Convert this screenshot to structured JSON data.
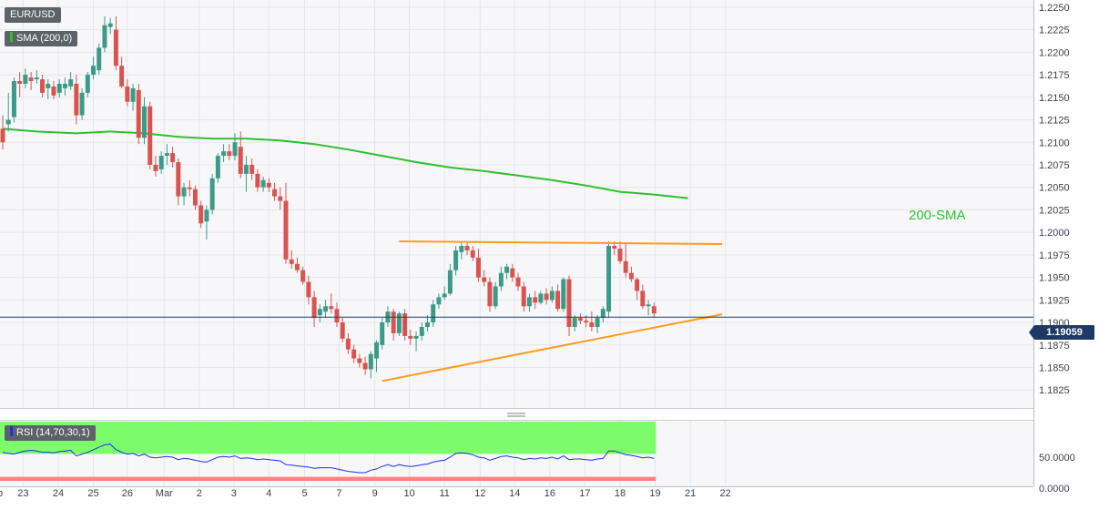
{
  "chart_data": {
    "type": "candlestick",
    "symbol": "EUR/USD",
    "indicators": {
      "sma": {
        "label": "SMA (200,0)",
        "color": "#2fbf2f",
        "callout": "200-SMA"
      },
      "rsi": {
        "label": "RSI (14,70,30,1)",
        "color": "#1f33d6",
        "overbought_color": "#7cfc6a",
        "oversold_color": "#ff8080"
      }
    },
    "last_price": "1.19059",
    "colors": {
      "up": "#3c9b86",
      "down": "#d9534f",
      "trendline": "#ff9a1e",
      "price_line": "#1d3a66"
    },
    "y_axis": {
      "ylim": [
        1.1805,
        1.2258
      ],
      "ticks": [
        "1.1825",
        "1.1850",
        "1.1875",
        "1.1900",
        "1.1925",
        "1.1950",
        "1.1975",
        "1.2000",
        "1.2025",
        "1.2050",
        "1.2075",
        "1.2100",
        "1.2125",
        "1.2150",
        "1.2175",
        "1.2200",
        "1.2225",
        "1.2250"
      ]
    },
    "rsi_axis": {
      "ylim": [
        0,
        100
      ],
      "ticks": [
        "50.0000",
        "0.0000"
      ]
    },
    "x_axis": {
      "tick_labels": [
        {
          "label": "Feb",
          "bar": -1.5
        },
        {
          "label": "23",
          "bar": 3.6
        },
        {
          "label": "24",
          "bar": 9.8
        },
        {
          "label": "25",
          "bar": 16
        },
        {
          "label": "26",
          "bar": 22
        },
        {
          "label": "Mar",
          "bar": 28.5
        },
        {
          "label": "2",
          "bar": 34.7
        },
        {
          "label": "3",
          "bar": 40.8
        },
        {
          "label": "4",
          "bar": 47
        },
        {
          "label": "5",
          "bar": 53.3
        },
        {
          "label": "7",
          "bar": 59.4
        },
        {
          "label": "9",
          "bar": 65.7
        },
        {
          "label": "10",
          "bar": 71.8
        },
        {
          "label": "11",
          "bar": 78
        },
        {
          "label": "12",
          "bar": 84.3
        },
        {
          "label": "14",
          "bar": 90.4
        },
        {
          "label": "16",
          "bar": 96.6
        },
        {
          "label": "17",
          "bar": 102.8
        },
        {
          "label": "18",
          "bar": 109
        },
        {
          "label": "19",
          "bar": 115.2
        },
        {
          "label": "21",
          "bar": 121.4
        },
        {
          "label": "22",
          "bar": 127.6
        }
      ]
    },
    "candles": [
      [
        1.2115,
        1.213,
        1.2092,
        1.21
      ],
      [
        1.212,
        1.2155,
        1.2112,
        1.2125
      ],
      [
        1.2128,
        1.2172,
        1.2122,
        1.2168
      ],
      [
        1.2168,
        1.2178,
        1.215,
        1.2165
      ],
      [
        1.2165,
        1.2182,
        1.216,
        1.2175
      ],
      [
        1.2172,
        1.2178,
        1.2158,
        1.2168
      ],
      [
        1.217,
        1.218,
        1.2165,
        1.2172
      ],
      [
        1.217,
        1.2175,
        1.215,
        1.2155
      ],
      [
        1.216,
        1.217,
        1.2148,
        1.2165
      ],
      [
        1.2162,
        1.2168,
        1.2148,
        1.2152
      ],
      [
        1.2155,
        1.217,
        1.215,
        1.2165
      ],
      [
        1.216,
        1.2172,
        1.2152,
        1.2165
      ],
      [
        1.2162,
        1.2178,
        1.2158,
        1.217
      ],
      [
        1.2165,
        1.2175,
        1.212,
        1.213
      ],
      [
        1.213,
        1.216,
        1.2125,
        1.2155
      ],
      [
        1.2155,
        1.2178,
        1.215,
        1.2175
      ],
      [
        1.2175,
        1.2195,
        1.217,
        1.2185
      ],
      [
        1.218,
        1.221,
        1.2175,
        1.2205
      ],
      [
        1.2205,
        1.224,
        1.22,
        1.223
      ],
      [
        1.2228,
        1.2238,
        1.222,
        1.2232
      ],
      [
        1.2225,
        1.224,
        1.218,
        1.2185
      ],
      [
        1.2185,
        1.2195,
        1.216,
        1.2162
      ],
      [
        1.2162,
        1.217,
        1.214,
        1.2145
      ],
      [
        1.2145,
        1.2165,
        1.2135,
        1.216
      ],
      [
        1.2158,
        1.2165,
        1.2098,
        1.2105
      ],
      [
        1.2105,
        1.215,
        1.2098,
        1.214
      ],
      [
        1.214,
        1.2145,
        1.207,
        1.2075
      ],
      [
        1.2075,
        1.2085,
        1.2062,
        1.2068
      ],
      [
        1.207,
        1.209,
        1.2065,
        1.2085
      ],
      [
        1.2085,
        1.2098,
        1.2075,
        1.2088
      ],
      [
        1.2088,
        1.2095,
        1.2072,
        1.2078
      ],
      [
        1.2078,
        1.2082,
        1.203,
        1.204
      ],
      [
        1.204,
        1.2055,
        1.203,
        1.205
      ],
      [
        1.205,
        1.2058,
        1.204,
        1.2048
      ],
      [
        1.2048,
        1.2052,
        1.2025,
        1.203
      ],
      [
        1.203,
        1.2035,
        1.2005,
        1.201
      ],
      [
        1.2012,
        1.203,
        1.1992,
        1.2025
      ],
      [
        1.2025,
        1.2065,
        1.202,
        1.206
      ],
      [
        1.206,
        1.2088,
        1.2055,
        1.2085
      ],
      [
        1.2085,
        1.2098,
        1.2078,
        1.209
      ],
      [
        1.209,
        1.2098,
        1.208,
        1.2085
      ],
      [
        1.2085,
        1.211,
        1.208,
        1.21
      ],
      [
        1.2095,
        1.2112,
        1.206,
        1.2065
      ],
      [
        1.2065,
        1.2085,
        1.2045,
        1.2075
      ],
      [
        1.2075,
        1.2082,
        1.2058,
        1.2065
      ],
      [
        1.2065,
        1.207,
        1.2045,
        1.205
      ],
      [
        1.205,
        1.2062,
        1.2045,
        1.2058
      ],
      [
        1.2055,
        1.206,
        1.2045,
        1.205
      ],
      [
        1.2048,
        1.2055,
        1.2035,
        1.204
      ],
      [
        1.204,
        1.205,
        1.2025,
        1.2035
      ],
      [
        1.2035,
        1.2055,
        1.1965,
        1.197
      ],
      [
        1.197,
        1.198,
        1.196,
        1.1965
      ],
      [
        1.1965,
        1.1972,
        1.1955,
        1.1958
      ],
      [
        1.1958,
        1.1962,
        1.1942,
        1.1945
      ],
      [
        1.1945,
        1.1952,
        1.192,
        1.1928
      ],
      [
        1.1928,
        1.1935,
        1.1895,
        1.1905
      ],
      [
        1.1908,
        1.192,
        1.19,
        1.1915
      ],
      [
        1.1912,
        1.1925,
        1.1905,
        1.1918
      ],
      [
        1.1918,
        1.1932,
        1.191,
        1.1915
      ],
      [
        1.1915,
        1.1922,
        1.1895,
        1.19
      ],
      [
        1.19,
        1.1905,
        1.1878,
        1.1882
      ],
      [
        1.1882,
        1.1888,
        1.1865,
        1.187
      ],
      [
        1.187,
        1.1875,
        1.1855,
        1.186
      ],
      [
        1.186,
        1.1865,
        1.185,
        1.1855
      ],
      [
        1.1855,
        1.1862,
        1.1842,
        1.1848
      ],
      [
        1.1848,
        1.1868,
        1.1838,
        1.1865
      ],
      [
        1.186,
        1.188,
        1.1845,
        1.1878
      ],
      [
        1.1875,
        1.1905,
        1.187,
        1.19
      ],
      [
        1.19,
        1.1918,
        1.1895,
        1.1912
      ],
      [
        1.1912,
        1.1915,
        1.188,
        1.1888
      ],
      [
        1.1888,
        1.1912,
        1.1885,
        1.191
      ],
      [
        1.191,
        1.1915,
        1.188,
        1.1885
      ],
      [
        1.1885,
        1.1892,
        1.1875,
        1.1882
      ],
      [
        1.1882,
        1.189,
        1.1868,
        1.1885
      ],
      [
        1.1885,
        1.19,
        1.188,
        1.1895
      ],
      [
        1.1895,
        1.1908,
        1.189,
        1.19
      ],
      [
        1.19,
        1.1925,
        1.1895,
        1.192
      ],
      [
        1.192,
        1.1932,
        1.1915,
        1.1928
      ],
      [
        1.1928,
        1.194,
        1.1925,
        1.1932
      ],
      [
        1.1932,
        1.1965,
        1.193,
        1.1958
      ],
      [
        1.1958,
        1.1985,
        1.1952,
        1.198
      ],
      [
        1.1978,
        1.199,
        1.197,
        1.1985
      ],
      [
        1.1985,
        1.199,
        1.1975,
        1.198
      ],
      [
        1.198,
        1.1985,
        1.1968,
        1.1972
      ],
      [
        1.1972,
        1.1982,
        1.1945,
        1.195
      ],
      [
        1.195,
        1.1958,
        1.194,
        1.1945
      ],
      [
        1.1945,
        1.195,
        1.1912,
        1.1918
      ],
      [
        1.1918,
        1.1945,
        1.1915,
        1.194
      ],
      [
        1.194,
        1.1962,
        1.1935,
        1.1955
      ],
      [
        1.1955,
        1.1965,
        1.1948,
        1.1962
      ],
      [
        1.196,
        1.1965,
        1.1945,
        1.195
      ],
      [
        1.195,
        1.1955,
        1.1935,
        1.194
      ],
      [
        1.194,
        1.1945,
        1.1912,
        1.1918
      ],
      [
        1.1918,
        1.1932,
        1.1912,
        1.1928
      ],
      [
        1.1928,
        1.1935,
        1.1915,
        1.1922
      ],
      [
        1.1922,
        1.1935,
        1.192,
        1.1932
      ],
      [
        1.1932,
        1.1938,
        1.192,
        1.1925
      ],
      [
        1.1925,
        1.194,
        1.1922,
        1.1935
      ],
      [
        1.1935,
        1.1942,
        1.1912,
        1.1915
      ],
      [
        1.1915,
        1.195,
        1.1912,
        1.1948
      ],
      [
        1.1948,
        1.1952,
        1.1885,
        1.1895
      ],
      [
        1.1895,
        1.1908,
        1.189,
        1.1905
      ],
      [
        1.1905,
        1.191,
        1.1898,
        1.1902
      ],
      [
        1.1902,
        1.1908,
        1.1895,
        1.19
      ],
      [
        1.19,
        1.1912,
        1.189,
        1.1895
      ],
      [
        1.1895,
        1.1908,
        1.1888,
        1.1905
      ],
      [
        1.1905,
        1.1918,
        1.19,
        1.1915
      ],
      [
        1.1912,
        1.199,
        1.1905,
        1.1985
      ],
      [
        1.1985,
        1.199,
        1.1975,
        1.1982
      ],
      [
        1.1982,
        1.199,
        1.1965,
        1.1968
      ],
      [
        1.1968,
        1.1988,
        1.195,
        1.1955
      ],
      [
        1.1955,
        1.1962,
        1.1945,
        1.1948
      ],
      [
        1.1948,
        1.195,
        1.1925,
        1.1935
      ],
      [
        1.1935,
        1.1942,
        1.1915,
        1.1918
      ],
      [
        1.1918,
        1.1925,
        1.1908,
        1.192
      ],
      [
        1.1918,
        1.1922,
        1.1905,
        1.191
      ]
    ],
    "sma_points": [
      [
        0,
        1.2115
      ],
      [
        6,
        1.2112
      ],
      [
        13,
        1.211
      ],
      [
        19,
        1.2112
      ],
      [
        25,
        1.211
      ],
      [
        31,
        1.2106
      ],
      [
        37,
        1.2104
      ],
      [
        43,
        1.2104
      ],
      [
        49,
        1.2102
      ],
      [
        55,
        1.2098
      ],
      [
        61,
        1.2092
      ],
      [
        67,
        1.2085
      ],
      [
        73,
        1.2078
      ],
      [
        79,
        1.2072
      ],
      [
        85,
        1.2068
      ],
      [
        91,
        1.2063
      ],
      [
        97,
        1.2058
      ],
      [
        103,
        1.2052
      ],
      [
        109,
        1.2045
      ],
      [
        115,
        1.2042
      ],
      [
        121,
        1.2038
      ]
    ],
    "trendlines": [
      {
        "from": [
          70,
          1.199
        ],
        "to": [
          127,
          1.1987
        ]
      },
      {
        "from": [
          67,
          1.1835
        ],
        "to": [
          127,
          1.1909
        ]
      }
    ],
    "rsi_values": [
      58,
      56,
      55,
      58,
      60,
      61,
      60,
      58,
      58,
      57,
      59,
      60,
      61,
      52,
      55,
      58,
      62,
      66,
      70,
      71,
      62,
      58,
      55,
      56,
      52,
      55,
      50,
      49,
      50,
      51,
      50,
      46,
      48,
      47,
      45,
      43,
      42,
      46,
      50,
      51,
      50,
      52,
      48,
      49,
      48,
      46,
      47,
      46,
      45,
      44,
      38,
      37,
      36,
      35,
      34,
      32,
      33,
      33,
      33,
      31,
      29,
      27,
      26,
      25,
      25,
      29,
      31,
      35,
      38,
      35,
      38,
      36,
      35,
      36,
      38,
      39,
      42,
      44,
      45,
      50,
      56,
      57,
      56,
      54,
      50,
      49,
      45,
      48,
      51,
      52,
      50,
      49,
      46,
      48,
      47,
      49,
      48,
      50,
      47,
      52,
      46,
      47,
      47,
      46,
      45,
      47,
      48,
      60,
      60,
      57,
      54,
      53,
      51,
      49,
      50,
      48
    ]
  }
}
